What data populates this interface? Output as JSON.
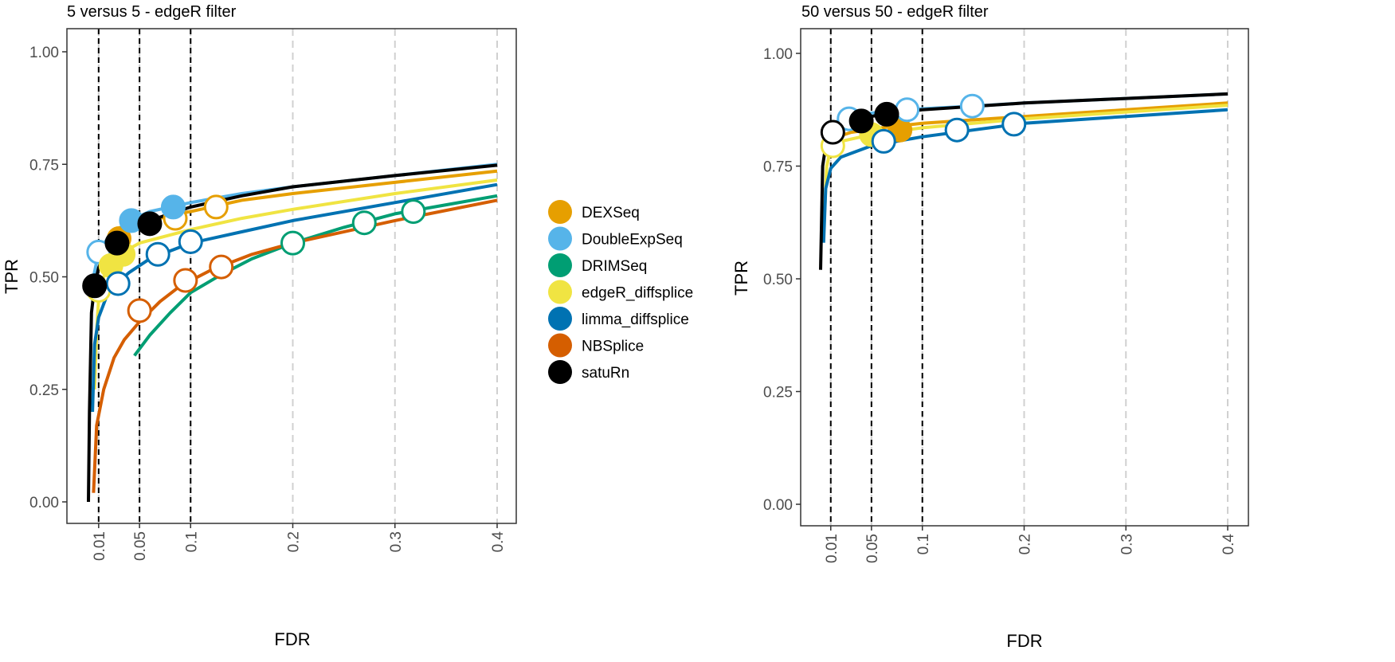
{
  "colors": {
    "DEXSeq": "#E69F00",
    "DoubleExpSeq": "#56B4E9",
    "DRIMSeq": "#009E73",
    "edgeR_diffsplice": "#F0E442",
    "limma_diffsplice": "#0072B2",
    "NBSplice": "#D55E00",
    "satuRn": "#000000"
  },
  "legend": {
    "items": [
      "DEXSeq",
      "DoubleExpSeq",
      "DRIMSeq",
      "edgeR_diffsplice",
      "limma_diffsplice",
      "NBSplice",
      "satuRn"
    ]
  },
  "chart_data": [
    {
      "type": "line",
      "title": "5 versus 5 - edgeR filter",
      "xlabel": "FDR",
      "ylabel": "TPR",
      "xlim": [
        0,
        0.4
      ],
      "ylim": [
        0,
        1
      ],
      "x_ticks": [
        0.01,
        0.05,
        0.1,
        0.2,
        0.3,
        0.4
      ],
      "x_tick_labels": [
        "0.01",
        "0.05",
        "0.1",
        "0.2",
        "0.3",
        "0.4"
      ],
      "y_ticks": [
        0,
        0.25,
        0.5,
        0.75,
        1.0
      ],
      "y_tick_labels": [
        "0.00",
        "0.25",
        "0.50",
        "0.75",
        "1.00"
      ],
      "fdr_thresholds": [
        0.01,
        0.05,
        0.1
      ],
      "grid": "vertical dashed",
      "legend_position": "right",
      "series": [
        {
          "name": "DEXSeq",
          "x": [
            0.01,
            0.02,
            0.035,
            0.05,
            0.07,
            0.085,
            0.1,
            0.15,
            0.2,
            0.3,
            0.4
          ],
          "y": [
            0.52,
            0.56,
            0.6,
            0.615,
            0.63,
            0.64,
            0.645,
            0.67,
            0.685,
            0.71,
            0.735
          ],
          "points": [
            {
              "x": 0.03,
              "y": 0.585,
              "filled": true
            },
            {
              "x": 0.085,
              "y": 0.63,
              "filled": false
            },
            {
              "x": 0.125,
              "y": 0.655,
              "filled": false
            }
          ]
        },
        {
          "name": "DoubleExpSeq",
          "x": [
            0.005,
            0.01,
            0.02,
            0.04,
            0.06,
            0.08,
            0.1,
            0.15,
            0.2,
            0.3,
            0.4
          ],
          "y": [
            0.5,
            0.555,
            0.59,
            0.625,
            0.645,
            0.655,
            0.665,
            0.685,
            0.7,
            0.725,
            0.75
          ],
          "points": [
            {
              "x": 0.042,
              "y": 0.625,
              "filled": true
            },
            {
              "x": 0.083,
              "y": 0.655,
              "filled": true
            },
            {
              "x": 0.01,
              "y": 0.555,
              "filled": false
            }
          ]
        },
        {
          "name": "DRIMSeq",
          "x": [
            0.045,
            0.06,
            0.08,
            0.1,
            0.13,
            0.16,
            0.2,
            0.25,
            0.3,
            0.35,
            0.4
          ],
          "y": [
            0.325,
            0.37,
            0.42,
            0.465,
            0.505,
            0.54,
            0.575,
            0.61,
            0.64,
            0.66,
            0.68
          ],
          "points": [
            {
              "x": 0.2,
              "y": 0.575,
              "filled": false
            },
            {
              "x": 0.27,
              "y": 0.62,
              "filled": false
            },
            {
              "x": 0.318,
              "y": 0.645,
              "filled": false
            }
          ]
        },
        {
          "name": "edgeR_diffsplice",
          "x": [
            0.006,
            0.008,
            0.01,
            0.015,
            0.02,
            0.03,
            0.05,
            0.1,
            0.15,
            0.2,
            0.3,
            0.4
          ],
          "y": [
            0.25,
            0.38,
            0.45,
            0.5,
            0.52,
            0.55,
            0.575,
            0.605,
            0.63,
            0.65,
            0.685,
            0.715
          ],
          "points": [
            {
              "x": 0.022,
              "y": 0.525,
              "filled": true
            },
            {
              "x": 0.034,
              "y": 0.55,
              "filled": true
            },
            {
              "x": 0.01,
              "y": 0.47,
              "filled": false
            }
          ]
        },
        {
          "name": "limma_diffsplice",
          "x": [
            0.004,
            0.006,
            0.01,
            0.02,
            0.04,
            0.06,
            0.1,
            0.15,
            0.2,
            0.3,
            0.4
          ],
          "y": [
            0.2,
            0.35,
            0.41,
            0.47,
            0.51,
            0.54,
            0.575,
            0.6,
            0.625,
            0.665,
            0.705
          ],
          "points": [
            {
              "x": 0.029,
              "y": 0.485,
              "filled": false
            },
            {
              "x": 0.068,
              "y": 0.55,
              "filled": false
            },
            {
              "x": 0.1,
              "y": 0.578,
              "filled": false
            }
          ]
        },
        {
          "name": "NBSplice",
          "x": [
            0.005,
            0.008,
            0.015,
            0.025,
            0.035,
            0.05,
            0.07,
            0.09,
            0.12,
            0.16,
            0.2,
            0.3,
            0.4
          ],
          "y": [
            0.02,
            0.17,
            0.25,
            0.32,
            0.36,
            0.4,
            0.445,
            0.48,
            0.515,
            0.55,
            0.575,
            0.625,
            0.67
          ],
          "points": [
            {
              "x": 0.05,
              "y": 0.425,
              "filled": false
            },
            {
              "x": 0.095,
              "y": 0.492,
              "filled": false
            },
            {
              "x": 0.13,
              "y": 0.522,
              "filled": false
            }
          ]
        },
        {
          "name": "satuRn",
          "x": [
            0.0,
            0.001,
            0.003,
            0.006,
            0.01,
            0.02,
            0.04,
            0.06,
            0.1,
            0.15,
            0.2,
            0.3,
            0.4
          ],
          "y": [
            0.0,
            0.2,
            0.42,
            0.48,
            0.52,
            0.575,
            0.605,
            0.625,
            0.655,
            0.68,
            0.7,
            0.725,
            0.748
          ],
          "points": [
            {
              "x": 0.006,
              "y": 0.48,
              "filled": true
            },
            {
              "x": 0.028,
              "y": 0.575,
              "filled": true
            },
            {
              "x": 0.06,
              "y": 0.618,
              "filled": true
            }
          ]
        }
      ]
    },
    {
      "type": "line",
      "title": "50 versus 50 - edgeR filter",
      "xlabel": "FDR",
      "ylabel": "TPR",
      "xlim": [
        0,
        0.4
      ],
      "ylim": [
        0,
        1
      ],
      "x_ticks": [
        0.01,
        0.05,
        0.1,
        0.2,
        0.3,
        0.4
      ],
      "x_tick_labels": [
        "0.01",
        "0.05",
        "0.1",
        "0.2",
        "0.3",
        "0.4"
      ],
      "y_ticks": [
        0,
        0.25,
        0.5,
        0.75,
        1.0
      ],
      "y_tick_labels": [
        "0.00",
        "0.25",
        "0.50",
        "0.75",
        "1.00"
      ],
      "fdr_thresholds": [
        0.01,
        0.05,
        0.1
      ],
      "grid": "vertical dashed",
      "series": [
        {
          "name": "DEXSeq",
          "x": [
            0.005,
            0.01,
            0.03,
            0.06,
            0.1,
            0.2,
            0.3,
            0.4
          ],
          "y": [
            0.78,
            0.81,
            0.825,
            0.835,
            0.845,
            0.86,
            0.875,
            0.89
          ],
          "points": [
            {
              "x": 0.078,
              "y": 0.83,
              "filled": true
            }
          ]
        },
        {
          "name": "DoubleExpSeq",
          "x": [
            0.005,
            0.01,
            0.02,
            0.04,
            0.08,
            0.15,
            0.2,
            0.3,
            0.4
          ],
          "y": [
            0.8,
            0.84,
            0.855,
            0.865,
            0.875,
            0.883,
            0.89,
            0.9,
            0.91
          ],
          "points": [
            {
              "x": 0.028,
              "y": 0.855,
              "filled": false
            },
            {
              "x": 0.085,
              "y": 0.875,
              "filled": false
            },
            {
              "x": 0.149,
              "y": 0.883,
              "filled": false
            }
          ]
        },
        {
          "name": "DRIMSeq",
          "x": [],
          "y": [],
          "points": []
        },
        {
          "name": "edgeR_diffsplice",
          "x": [
            0.003,
            0.006,
            0.01,
            0.02,
            0.05,
            0.1,
            0.2,
            0.3,
            0.4
          ],
          "y": [
            0.6,
            0.75,
            0.79,
            0.805,
            0.82,
            0.835,
            0.855,
            0.87,
            0.885
          ],
          "points": [
            {
              "x": 0.012,
              "y": 0.795,
              "filled": false
            },
            {
              "x": 0.05,
              "y": 0.82,
              "filled": true
            }
          ]
        },
        {
          "name": "limma_diffsplice",
          "x": [
            0.003,
            0.005,
            0.01,
            0.02,
            0.05,
            0.1,
            0.15,
            0.2,
            0.3,
            0.4
          ],
          "y": [
            0.58,
            0.7,
            0.745,
            0.77,
            0.795,
            0.815,
            0.83,
            0.845,
            0.86,
            0.875
          ],
          "points": [
            {
              "x": 0.062,
              "y": 0.805,
              "filled": false
            },
            {
              "x": 0.134,
              "y": 0.83,
              "filled": false
            },
            {
              "x": 0.19,
              "y": 0.843,
              "filled": false
            }
          ]
        },
        {
          "name": "NBSplice",
          "x": [],
          "y": [],
          "points": []
        },
        {
          "name": "satuRn",
          "x": [
            0.0,
            0.002,
            0.006,
            0.012,
            0.03,
            0.06,
            0.1,
            0.2,
            0.3,
            0.4
          ],
          "y": [
            0.52,
            0.75,
            0.81,
            0.83,
            0.85,
            0.865,
            0.875,
            0.89,
            0.9,
            0.91
          ],
          "points": [
            {
              "x": 0.012,
              "y": 0.825,
              "filled": false
            },
            {
              "x": 0.04,
              "y": 0.85,
              "filled": true
            },
            {
              "x": 0.065,
              "y": 0.865,
              "filled": true
            }
          ]
        }
      ]
    }
  ]
}
